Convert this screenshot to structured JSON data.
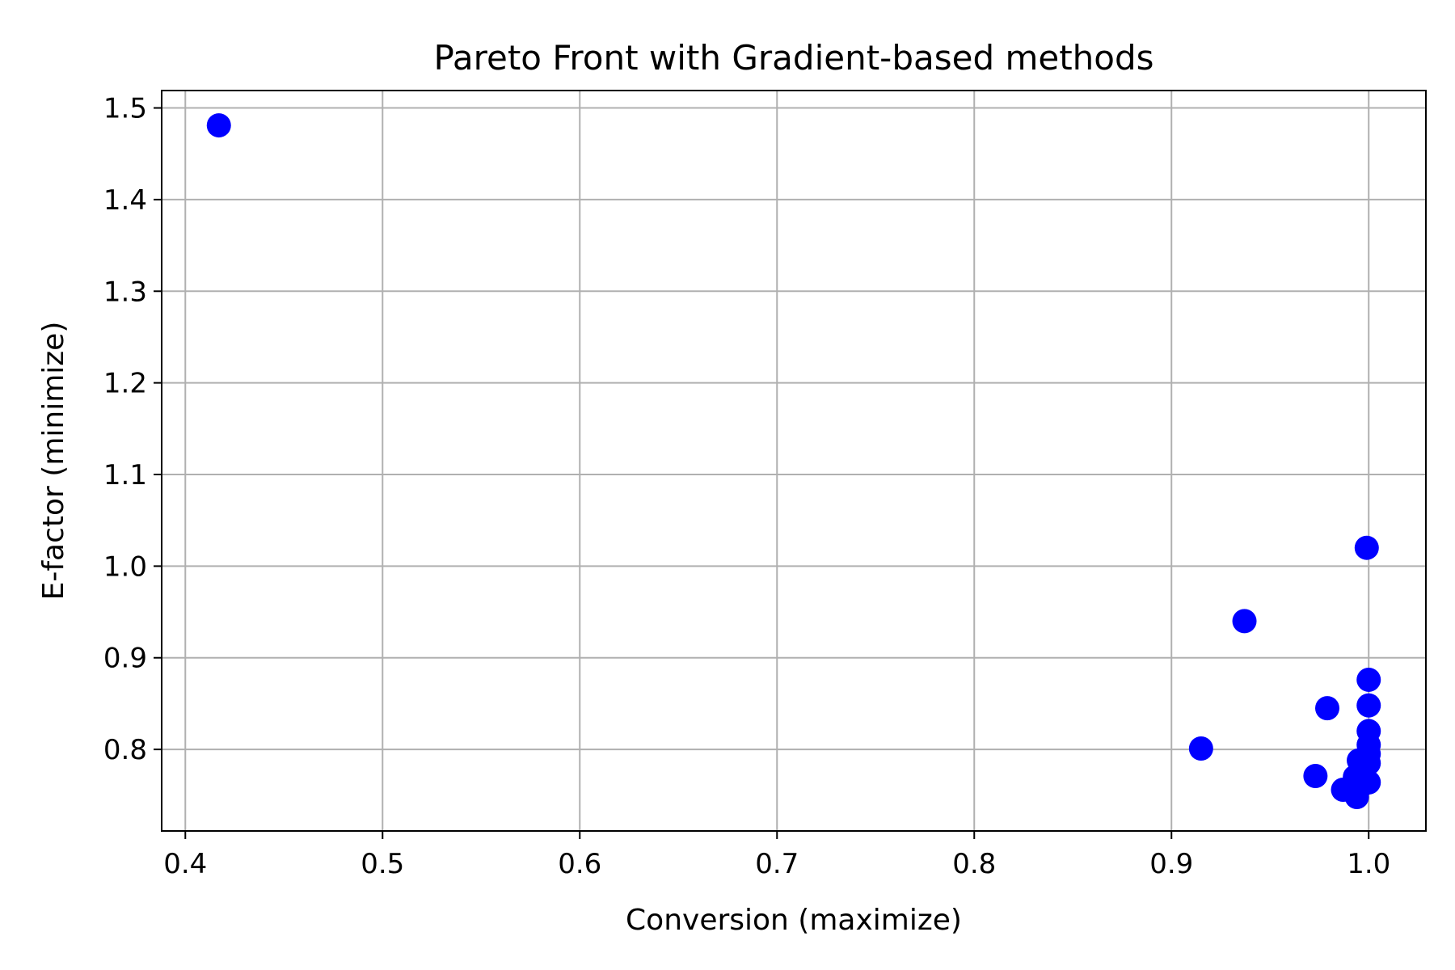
{
  "chart_data": {
    "type": "scatter",
    "title": "Pareto Front with Gradient-based methods",
    "xlabel": "Conversion (maximize)",
    "ylabel": "E-factor (minimize)",
    "xlim": [
      0.388,
      1.029
    ],
    "ylim": [
      0.711,
      1.519
    ],
    "xticks": [
      0.4,
      0.5,
      0.6,
      0.7,
      0.8,
      0.9,
      1.0
    ],
    "xtick_labels": [
      "0.4",
      "0.5",
      "0.6",
      "0.7",
      "0.8",
      "0.9",
      "1.0"
    ],
    "yticks": [
      0.8,
      0.9,
      1.0,
      1.1,
      1.2,
      1.3,
      1.4,
      1.5
    ],
    "ytick_labels": [
      "0.8",
      "0.9",
      "1.0",
      "1.1",
      "1.2",
      "1.3",
      "1.4",
      "1.5"
    ],
    "grid": true,
    "point_color": "#0000ff",
    "points": [
      {
        "x": 0.417,
        "y": 1.481
      },
      {
        "x": 0.999,
        "y": 1.02
      },
      {
        "x": 0.937,
        "y": 0.94
      },
      {
        "x": 1.0,
        "y": 0.876
      },
      {
        "x": 1.0,
        "y": 0.848
      },
      {
        "x": 0.979,
        "y": 0.845
      },
      {
        "x": 1.0,
        "y": 0.82
      },
      {
        "x": 1.0,
        "y": 0.805
      },
      {
        "x": 0.915,
        "y": 0.801
      },
      {
        "x": 1.0,
        "y": 0.795
      },
      {
        "x": 0.995,
        "y": 0.788
      },
      {
        "x": 1.0,
        "y": 0.785
      },
      {
        "x": 0.973,
        "y": 0.771
      },
      {
        "x": 0.993,
        "y": 0.77
      },
      {
        "x": 1.0,
        "y": 0.764
      },
      {
        "x": 0.996,
        "y": 0.76
      },
      {
        "x": 0.987,
        "y": 0.756
      },
      {
        "x": 0.994,
        "y": 0.748
      }
    ]
  }
}
